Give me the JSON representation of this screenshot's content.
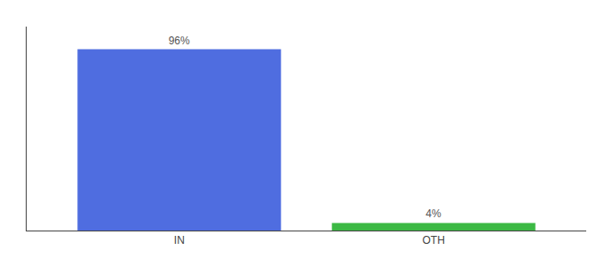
{
  "chart_data": {
    "type": "bar",
    "categories": [
      "IN",
      "OTH"
    ],
    "values": [
      96,
      4
    ],
    "value_labels": [
      "96%",
      "4%"
    ],
    "colors": [
      "#4F6DE0",
      "#3CB944"
    ],
    "ylim": [
      0,
      108
    ],
    "data_labels": true,
    "tick_labels": "x",
    "grid": false
  }
}
